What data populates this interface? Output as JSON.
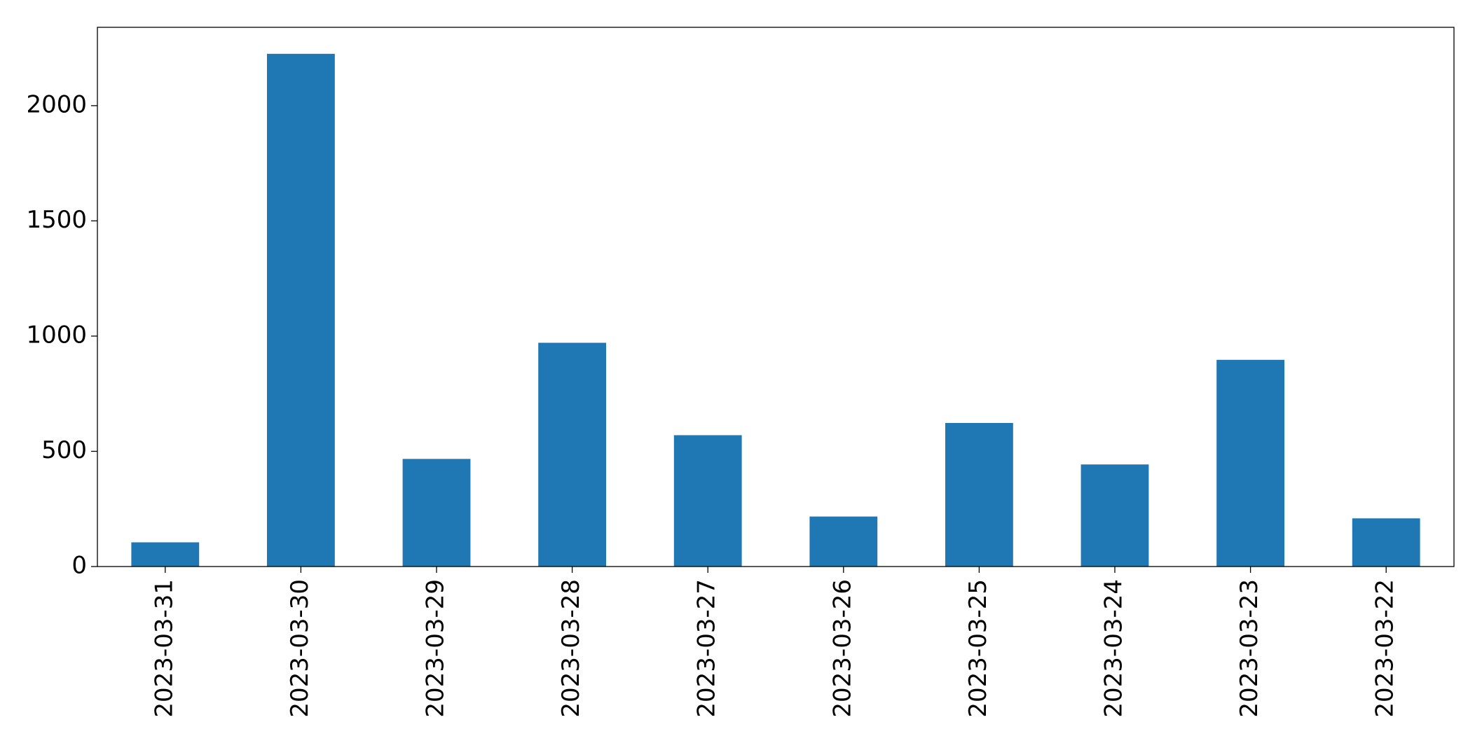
{
  "chart_data": {
    "type": "bar",
    "categories": [
      "2023-03-31",
      "2023-03-30",
      "2023-03-29",
      "2023-03-28",
      "2023-03-27",
      "2023-03-26",
      "2023-03-25",
      "2023-03-24",
      "2023-03-23",
      "2023-03-22"
    ],
    "values": [
      105,
      2225,
      467,
      971,
      570,
      217,
      623,
      443,
      897,
      209
    ],
    "color": "#1f77b4",
    "ylim": [
      0,
      2340
    ],
    "yticks": [
      0,
      500,
      1000,
      1500,
      2000
    ],
    "grid": false
  }
}
